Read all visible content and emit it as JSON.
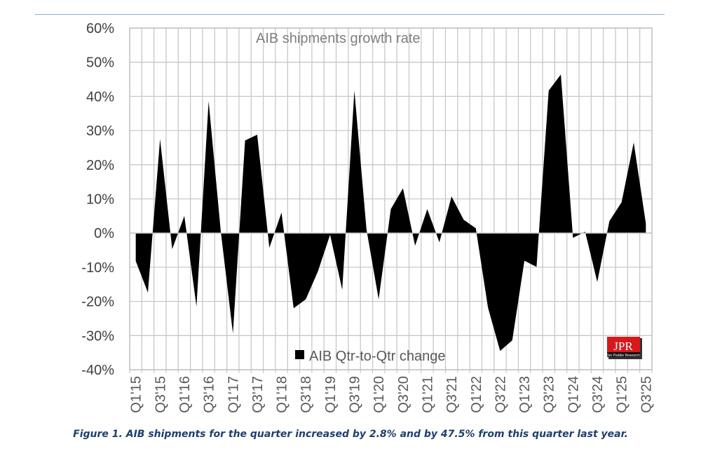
{
  "chart_data": {
    "type": "area",
    "title": "AIB shipments growth rate",
    "xlabel": "",
    "ylabel": "",
    "ylim": [
      -40,
      60
    ],
    "y_ticks": [
      "60%",
      "50%",
      "40%",
      "30%",
      "20%",
      "10%",
      "0%",
      "-10%",
      "-20%",
      "-30%",
      "-40%"
    ],
    "y_tick_values": [
      60,
      50,
      40,
      30,
      20,
      10,
      0,
      -10,
      -20,
      -30,
      -40
    ],
    "x_tick_labels": [
      "Q1'15",
      "Q3'15",
      "Q1'16",
      "Q3'16",
      "Q1'17",
      "Q3'17",
      "Q1'18",
      "Q3'18",
      "Q1'19",
      "Q3'19",
      "Q1'20",
      "Q3'20",
      "Q1'21",
      "Q3'21",
      "Q1'22",
      "Q3'22",
      "Q1'23",
      "Q3'23",
      "Q1'24",
      "Q3'24",
      "Q1'25",
      "Q3'25"
    ],
    "grid": true,
    "legend_position": "bottom-center",
    "series": [
      {
        "name": "AIB Qtr-to-Qtr change",
        "color": "#000000",
        "values": [
          -8.2,
          -17.4,
          27.5,
          -4.7,
          5.0,
          -21.5,
          38.6,
          0.5,
          -29.4,
          27.1,
          28.8,
          -4.3,
          6.0,
          -22.0,
          -19.4,
          -11.2,
          -0.5,
          -16.6,
          41.7,
          1.0,
          -19.4,
          7.0,
          13.1,
          -3.7,
          7.0,
          -2.7,
          10.7,
          3.9,
          1.4,
          -21.8,
          -34.5,
          -31.4,
          -8.1,
          -9.9,
          41.7,
          46.4,
          -1.4,
          0.4,
          -14.3,
          3.5,
          9.0,
          26.5,
          2.8
        ]
      }
    ]
  },
  "caption": "Figure 1. AIB shipments for the quarter increased by 2.8% and by 47.5% from this quarter last year.",
  "logo": {
    "text": "JPR",
    "subtext": "Jon Peddie Research",
    "color": "#d7191c"
  }
}
